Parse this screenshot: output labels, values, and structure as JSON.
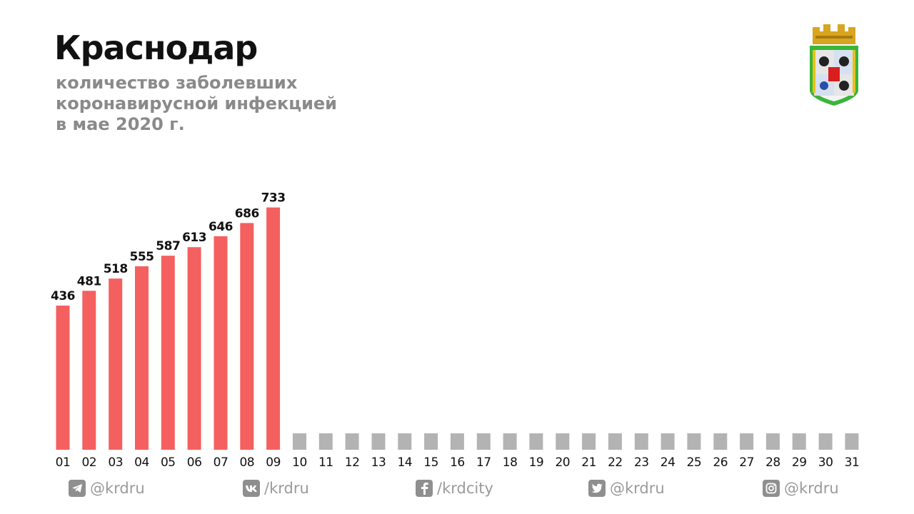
{
  "header": {
    "title": "Краснодар",
    "subtitle_lines": [
      "количество заболевших",
      "коронавирусной инфекцией",
      "в мае 2020 г."
    ]
  },
  "chart_data": {
    "type": "bar",
    "categories": [
      "01",
      "02",
      "03",
      "04",
      "05",
      "06",
      "07",
      "08",
      "09",
      "10",
      "11",
      "12",
      "13",
      "14",
      "15",
      "16",
      "17",
      "18",
      "19",
      "20",
      "21",
      "22",
      "23",
      "24",
      "25",
      "26",
      "27",
      "28",
      "29",
      "30",
      "31"
    ],
    "values": [
      436,
      481,
      518,
      555,
      587,
      613,
      646,
      686,
      733,
      null,
      null,
      null,
      null,
      null,
      null,
      null,
      null,
      null,
      null,
      null,
      null,
      null,
      null,
      null,
      null,
      null,
      null,
      null,
      null,
      null,
      null
    ],
    "bar_color": "#f4605f",
    "placeholder_color": "#b3b3b3"
  },
  "footer": {
    "telegram": {
      "icon": "telegram-icon",
      "text": "@krdru"
    },
    "vk": {
      "icon": "vk-icon",
      "text": "/krdru"
    },
    "facebook": {
      "icon": "facebook-icon",
      "text": "/krdcity"
    },
    "twitter": {
      "icon": "twitter-icon",
      "text": "@krdru"
    },
    "instagram": {
      "icon": "instagram-icon",
      "text": "@krdru"
    }
  },
  "emblem": {
    "icon": "krasnodar-coat-of-arms-icon"
  }
}
